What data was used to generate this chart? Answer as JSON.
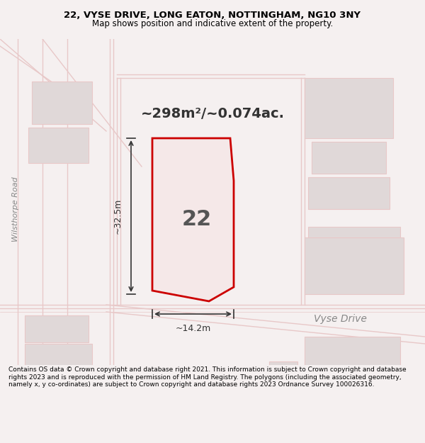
{
  "title_line1": "22, VYSE DRIVE, LONG EATON, NOTTINGHAM, NG10 3NY",
  "title_line2": "Map shows position and indicative extent of the property.",
  "area_text": "~298m²/~0.074ac.",
  "property_number": "22",
  "dim_width": "~14.2m",
  "dim_height": "~32.5m",
  "road_label": "Vyse Drive",
  "side_road_label": "Wilsthorpe Road",
  "footer_text": "Contains OS data © Crown copyright and database right 2021. This information is subject to Crown copyright and database rights 2023 and is reproduced with the permission of HM Land Registry. The polygons (including the associated geometry, namely x, y co-ordinates) are subject to Crown copyright and database rights 2023 Ordnance Survey 100026316.",
  "bg_color": "#f5f0f0",
  "map_bg": "#f5f0f0",
  "property_fill": "#f5e8e8",
  "property_edge": "#cc0000",
  "road_color": "#e8c8c8",
  "building_color": "#e0d8d8",
  "title_bg": "#ffffff",
  "footer_bg": "#ffffff"
}
